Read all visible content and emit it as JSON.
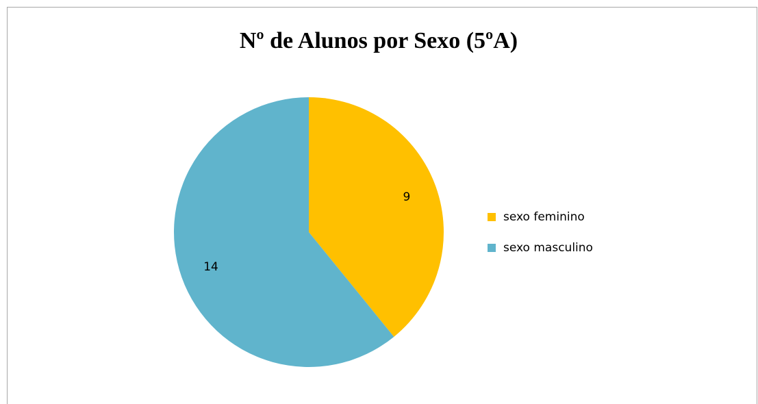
{
  "chart_data": {
    "type": "pie",
    "title": "Nº de Alunos por Sexo (5ºA)",
    "categories": [
      "sexo feminino",
      "sexo masculino"
    ],
    "values": [
      9,
      14
    ],
    "colors": [
      "#ffc000",
      "#60b4cc"
    ],
    "legend": "right"
  }
}
